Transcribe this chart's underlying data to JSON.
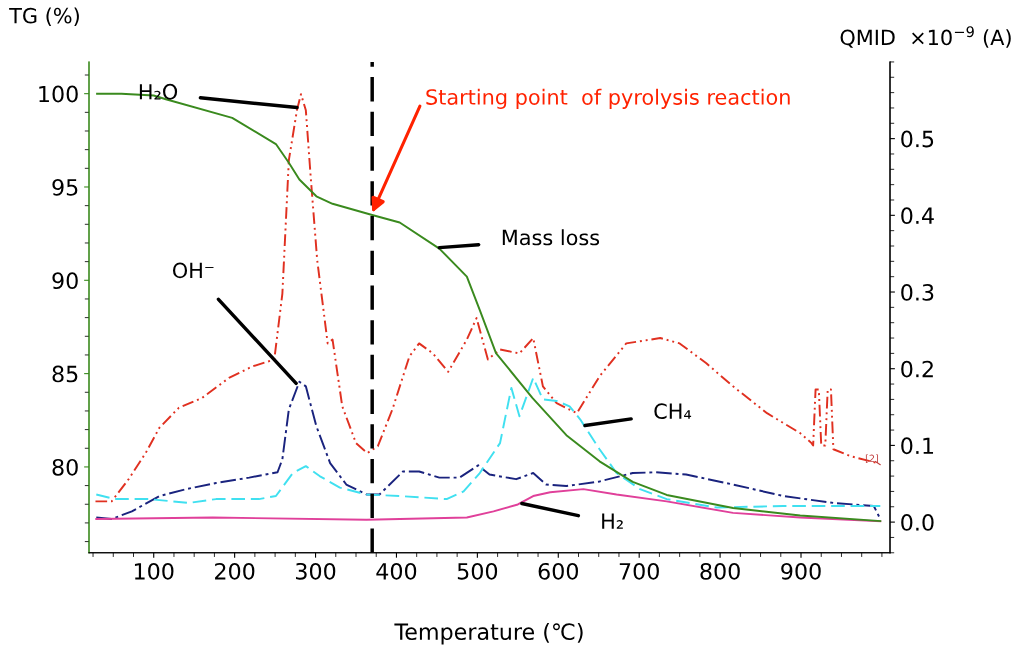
{
  "chart_data": {
    "type": "line",
    "xlabel": "Temperature (℃)",
    "ylabel": "TG (%)",
    "y2label": "QMID  ×10$^{−9}$ (A)",
    "xlim": [
      20,
      1010
    ],
    "xticks": [
      100,
      200,
      300,
      400,
      500,
      600,
      700,
      800,
      900
    ],
    "ylim": [
      75.4,
      101.7
    ],
    "yticks": [
      80,
      85,
      90,
      95,
      100
    ],
    "y2lim": [
      -0.04,
      0.6
    ],
    "y2ticks": [
      {
        "value": 0,
        "label": "0.0"
      },
      0.1,
      0.2,
      0.3,
      0.4,
      0.5
    ],
    "grid": false,
    "marker": "none",
    "series": [
      {
        "color": "#3a8a1e",
        "line_style": "solid",
        "x": [
          30,
          60,
          100,
          115,
          197,
          251,
          267,
          280,
          301,
          321,
          370,
          404,
          453,
          487,
          503,
          523,
          568,
          610,
          651,
          692,
          734,
          816,
          899,
          998
        ],
        "values": [
          100.0,
          100.0,
          99.9,
          99.7,
          98.7,
          97.3,
          96.3,
          95.4,
          94.5,
          94.1,
          93.5,
          93.1,
          91.7,
          90.2,
          88.4,
          86.1,
          83.7,
          81.7,
          80.3,
          79.2,
          78.5,
          77.8,
          77.4,
          77.1
        ]
      },
      {
        "axis": "y2",
        "color": "#e03020",
        "line_style": "dashdotdot",
        "x": [
          28,
          48,
          69,
          90,
          107,
          131,
          160,
          193,
          222,
          249,
          259,
          267,
          277,
          282,
          288,
          294,
          302,
          315,
          321,
          333,
          350,
          364,
          377,
          395,
          416,
          428,
          445,
          464,
          487,
          499,
          513,
          528,
          552,
          569,
          581,
          598,
          623,
          651,
          684,
          726,
          750,
          783,
          816,
          858,
          899,
          913,
          915,
          918,
          922,
          925,
          930,
          933,
          937,
          940,
          961,
          994
        ],
        "values": [
          0.027,
          0.027,
          0.056,
          0.09,
          0.123,
          0.149,
          0.162,
          0.188,
          0.203,
          0.212,
          0.298,
          0.472,
          0.537,
          0.558,
          0.537,
          0.45,
          0.342,
          0.233,
          0.238,
          0.151,
          0.103,
          0.09,
          0.099,
          0.147,
          0.216,
          0.233,
          0.22,
          0.196,
          0.238,
          0.266,
          0.212,
          0.225,
          0.22,
          0.24,
          0.177,
          0.155,
          0.142,
          0.19,
          0.233,
          0.24,
          0.233,
          0.207,
          0.177,
          0.142,
          0.116,
          0.103,
          0.1,
          0.173,
          0.173,
          0.1,
          0.1,
          0.173,
          0.173,
          0.095,
          0.086,
          0.077
        ]
      },
      {
        "axis": "y2",
        "color": "#1a237e",
        "line_style": "dashdot",
        "x": [
          29,
          48,
          73,
          107,
          140,
          177,
          218,
          253,
          259,
          267,
          280,
          288,
          301,
          318,
          338,
          363,
          379,
          408,
          428,
          453,
          478,
          501,
          515,
          548,
          569,
          585,
          610,
          651,
          692,
          721,
          758,
          816,
          878,
          940,
          990,
          998
        ],
        "values": [
          0.006,
          0.004,
          0.014,
          0.034,
          0.043,
          0.051,
          0.058,
          0.065,
          0.082,
          0.147,
          0.183,
          0.177,
          0.125,
          0.077,
          0.049,
          0.036,
          0.036,
          0.066,
          0.066,
          0.058,
          0.058,
          0.074,
          0.062,
          0.056,
          0.064,
          0.049,
          0.047,
          0.053,
          0.064,
          0.065,
          0.062,
          0.049,
          0.034,
          0.025,
          0.021,
          0.004
        ]
      },
      {
        "axis": "y2",
        "color": "#40e0f0",
        "line_style": "dashed",
        "x": [
          29,
          52,
          94,
          143,
          177,
          230,
          251,
          272,
          288,
          305,
          330,
          363,
          404,
          462,
          483,
          503,
          528,
          542,
          552,
          569,
          581,
          598,
          614,
          627,
          651,
          672,
          701,
          734,
          796,
          878,
          998
        ],
        "values": [
          0.036,
          0.03,
          0.03,
          0.025,
          0.03,
          0.03,
          0.034,
          0.064,
          0.073,
          0.06,
          0.045,
          0.036,
          0.034,
          0.03,
          0.04,
          0.064,
          0.103,
          0.175,
          0.138,
          0.188,
          0.16,
          0.158,
          0.151,
          0.134,
          0.095,
          0.064,
          0.043,
          0.03,
          0.019,
          0.021,
          0.021
        ]
      },
      {
        "axis": "y2",
        "color": "#e0409a",
        "line_style": "solid",
        "x": [
          29,
          173,
          363,
          487,
          520,
          550,
          569,
          590,
          631,
          672,
          734,
          816,
          899,
          998
        ],
        "values": [
          0.004,
          0.006,
          0.003,
          0.006,
          0.014,
          0.023,
          0.034,
          0.039,
          0.043,
          0.036,
          0.027,
          0.012,
          0.006,
          0.001
        ]
      }
    ],
    "ref_lines": [
      {
        "axis": "x",
        "value": 370,
        "color": "#000000",
        "line_style": "dashed"
      }
    ],
    "annotations": [
      {
        "text": "H₂O",
        "x": 277,
        "y": 99.26
      },
      {
        "text": "OH⁻",
        "x": 276,
        "y": 84.48
      },
      {
        "text": "Mass loss",
        "x": 453,
        "y": 91.75
      },
      {
        "text": "CH₄",
        "x": 633,
        "y": 82.22
      },
      {
        "text": "H₂",
        "x": 555,
        "y": 78.04
      },
      {
        "text": "Starting point  of pyrolysis reaction",
        "x": 370,
        "y": 93.62
      },
      {
        "text": "[2]",
        "x": 998,
        "y": 80.12
      }
    ]
  }
}
